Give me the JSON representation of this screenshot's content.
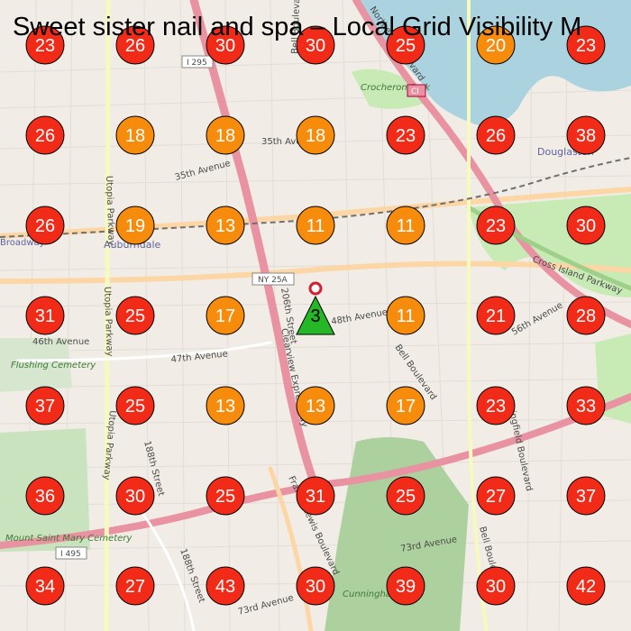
{
  "title": "Sweet sister nail and spa – Local Grid Visibility M",
  "colors": {
    "rank_high": "#f22b18",
    "rank_mid": "#f78c0c",
    "rank_top": "#26b726",
    "marker_ring": "#d31f2f",
    "water": "#aad3df",
    "park": "#c8eab5"
  },
  "grid": {
    "rows": [
      [
        23,
        26,
        30,
        30,
        25,
        20,
        23
      ],
      [
        26,
        18,
        18,
        18,
        23,
        26,
        38
      ],
      [
        26,
        19,
        13,
        11,
        11,
        23,
        30
      ],
      [
        31,
        25,
        17,
        3,
        11,
        21,
        28
      ],
      [
        37,
        25,
        13,
        13,
        17,
        23,
        33
      ],
      [
        36,
        30,
        25,
        31,
        25,
        27,
        37
      ],
      [
        34,
        27,
        43,
        30,
        39,
        30,
        42
      ]
    ],
    "business_marker": "business-location-pin"
  },
  "map_labels": {
    "streets": [
      "35th Avenue",
      "35th Avenue",
      "46th Avenue",
      "47th Avenue",
      "48th Avenue",
      "56th Avenue",
      "73rd Avenue",
      "73rd Avenue",
      "Bell Boulevard",
      "Bell Boulevard",
      "Bell Boulevard",
      "Utopia Parkway",
      "Utopia Parkway",
      "Utopia Parkway",
      "Francis Lewis Boulevard",
      "Clearview Expressway",
      "Springfield Boulevard",
      "Cross Island Parkway",
      "188th Street",
      "188th Street",
      "206th Street",
      "Northern Boulevard",
      "Crocheron Park",
      "Cunningham Park",
      "Flushing Cemetery",
      "Mount Saint Mary Cemetery",
      "Auburndale",
      "Douglaston",
      "Broadway"
    ],
    "shields": [
      "I 295",
      "NY 25A",
      "I 495",
      "CI"
    ]
  }
}
